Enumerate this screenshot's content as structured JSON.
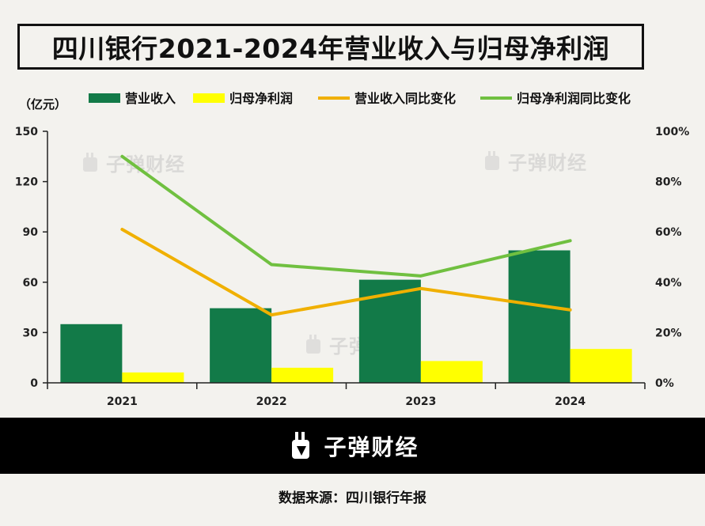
{
  "title": "四川银行2021-2024年营业收入与归母净利润",
  "footer": {
    "brand": "子弹财经"
  },
  "source": "数据来源：四川银行年报",
  "watermark": "子弹财经",
  "colors": {
    "revenue": "#127a48",
    "net_profit": "#ffff00",
    "revenue_yoy": "#f0b000",
    "net_profit_yoy": "#70c040"
  },
  "chart_data": {
    "type": "bar",
    "categories": [
      "2021",
      "2022",
      "2023",
      "2024"
    ],
    "y_unit_label": "（亿元）",
    "ylim": [
      0,
      150
    ],
    "yticks": [
      "0",
      "30",
      "60",
      "90",
      "120",
      "150"
    ],
    "y2lim": [
      0,
      100
    ],
    "y2ticks": [
      "0%",
      "20%",
      "40%",
      "60%",
      "80%",
      "100%"
    ],
    "legend_position": "top",
    "grid": false,
    "series": [
      {
        "name": "营业收入",
        "type": "bar",
        "axis": "left",
        "values": [
          35,
          44.5,
          61.5,
          79
        ]
      },
      {
        "name": "归母净利润",
        "type": "bar",
        "axis": "left",
        "values": [
          6.2,
          9,
          13,
          20.2
        ]
      },
      {
        "name": "营业收入同比变化",
        "type": "line",
        "axis": "right",
        "values": [
          61,
          27,
          37.5,
          29
        ]
      },
      {
        "name": "归母净利润同比变化",
        "type": "line",
        "axis": "right",
        "values": [
          90,
          47,
          42.5,
          56.5
        ]
      }
    ]
  }
}
